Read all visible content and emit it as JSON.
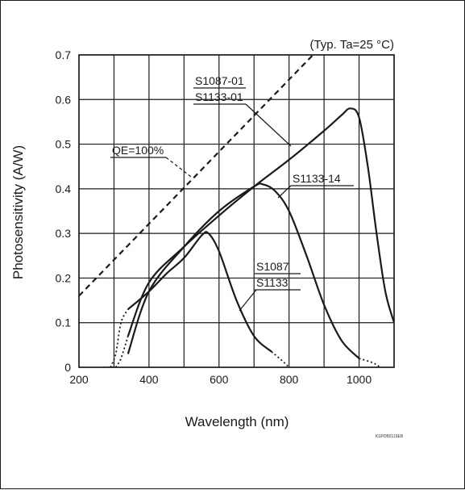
{
  "chart_data": {
    "type": "line",
    "note": "(Typ. Ta=25 °C)",
    "xlabel": "Wavelength (nm)",
    "ylabel": "Photosensitivity (A/W)",
    "xlim": [
      200,
      1100
    ],
    "ylim": [
      0,
      0.7
    ],
    "xticks": [
      "200",
      "400",
      "600",
      "800",
      "1000"
    ],
    "yticks": [
      "0",
      "0.1",
      "0.2",
      "0.3",
      "0.4",
      "0.5",
      "0.6",
      "0.7"
    ],
    "grid": true,
    "figure_code": "KSPDB0119EB",
    "series": [
      {
        "name": "QE=100%",
        "style": "dashed",
        "x": [
          200,
          700,
          1100
        ],
        "y": [
          0.16,
          0.565,
          0.887
        ]
      },
      {
        "name": "S1087-01 / S1133-01",
        "style": "solid",
        "x": [
          340,
          400,
          500,
          600,
          700,
          800,
          900,
          950,
          975,
          1000,
          1025,
          1050,
          1075,
          1100
        ],
        "y": [
          0.07,
          0.19,
          0.27,
          0.34,
          0.405,
          0.465,
          0.53,
          0.565,
          0.58,
          0.56,
          0.45,
          0.3,
          0.17,
          0.1
        ]
      },
      {
        "name": "S1133-14",
        "style": "solid",
        "x": [
          340,
          400,
          500,
          600,
          700,
          725,
          760,
          800,
          850,
          900,
          950,
          1000
        ],
        "y": [
          0.03,
          0.17,
          0.27,
          0.35,
          0.405,
          0.41,
          0.395,
          0.35,
          0.25,
          0.14,
          0.06,
          0.02
        ]
      },
      {
        "name": "S1087 / S1133",
        "style": "solid",
        "x": [
          340,
          400,
          450,
          500,
          550,
          570,
          600,
          650,
          700,
          750
        ],
        "y": [
          0.13,
          0.17,
          0.21,
          0.245,
          0.295,
          0.3,
          0.26,
          0.15,
          0.07,
          0.035
        ]
      }
    ],
    "dotted_extensions": [
      {
        "x": [
          290,
          305,
          320,
          340
        ],
        "y": [
          0.0,
          0.03,
          0.1,
          0.13
        ]
      },
      {
        "x": [
          305,
          320,
          340
        ],
        "y": [
          0.0,
          0.02,
          0.07
        ]
      },
      {
        "x": [
          750,
          780,
          800
        ],
        "y": [
          0.035,
          0.015,
          0.0
        ]
      },
      {
        "x": [
          1000,
          1040,
          1060
        ],
        "y": [
          0.02,
          0.01,
          0.0
        ]
      },
      {
        "x": [
          270,
          290,
          305
        ],
        "y": [
          0.0,
          0.0,
          0.0
        ]
      }
    ],
    "labels": [
      {
        "text": "S1087-01",
        "series": 1
      },
      {
        "text": "S1133-01",
        "series": 1
      },
      {
        "text": "S1133-14",
        "series": 2
      },
      {
        "text": "S1087",
        "series": 3
      },
      {
        "text": "S1133",
        "series": 3
      },
      {
        "text": "QE=100%",
        "series": 0
      }
    ]
  }
}
